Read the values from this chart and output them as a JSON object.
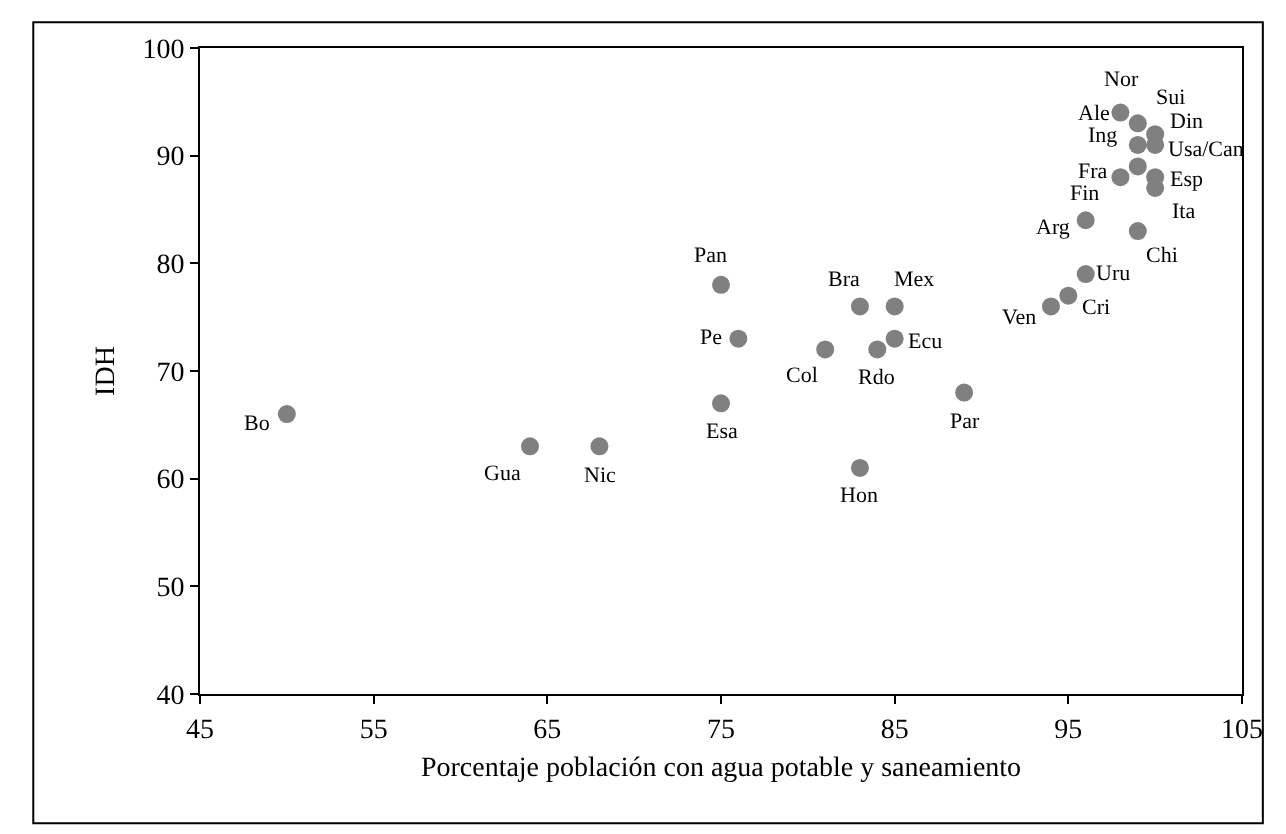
{
  "chart_data": {
    "type": "scatter",
    "xlabel": "Porcentaje población con agua potable y saneamiento",
    "ylabel": "IDH",
    "x": [
      50,
      64,
      68,
      75,
      75,
      76,
      81,
      83,
      85,
      84,
      85,
      83,
      89,
      94,
      95,
      96,
      99,
      96,
      98,
      99,
      100,
      100,
      99,
      100,
      100,
      99,
      98
    ],
    "values": [
      66,
      63,
      63,
      67,
      78,
      73,
      72,
      76,
      76,
      72,
      73,
      61,
      68,
      76,
      77,
      79,
      83,
      84,
      88,
      89,
      88,
      87,
      91,
      91,
      92,
      93,
      94
    ],
    "color": "#808080",
    "marker": "circle",
    "legend": false,
    "xlim": [
      45,
      105
    ],
    "xticks": [
      45,
      55,
      65,
      75,
      85,
      95,
      105
    ],
    "ylim": [
      40,
      100
    ],
    "yticks": [
      40,
      50,
      60,
      70,
      80,
      90,
      100
    ],
    "annotations": [
      {
        "text": "Bo",
        "x": 50,
        "y": 66
      },
      {
        "text": "Gua",
        "x": 64,
        "y": 63
      },
      {
        "text": "Nic",
        "x": 68,
        "y": 63
      },
      {
        "text": "Esa",
        "x": 75,
        "y": 67
      },
      {
        "text": "Pan",
        "x": 75,
        "y": 78
      },
      {
        "text": "Pe",
        "x": 76,
        "y": 73
      },
      {
        "text": "Col",
        "x": 81,
        "y": 72
      },
      {
        "text": "Bra",
        "x": 83,
        "y": 76
      },
      {
        "text": "Mex",
        "x": 85,
        "y": 76
      },
      {
        "text": "Rdo",
        "x": 84,
        "y": 72
      },
      {
        "text": "Ecu",
        "x": 85,
        "y": 73
      },
      {
        "text": "Hon",
        "x": 83,
        "y": 61
      },
      {
        "text": "Par",
        "x": 89,
        "y": 68
      },
      {
        "text": "Ven",
        "x": 94,
        "y": 76
      },
      {
        "text": "Cri",
        "x": 95,
        "y": 77
      },
      {
        "text": "Uru",
        "x": 96,
        "y": 79
      },
      {
        "text": "Chi",
        "x": 99,
        "y": 83
      },
      {
        "text": "Arg",
        "x": 96,
        "y": 84
      },
      {
        "text": "Fin",
        "x": 96,
        "y": 84
      },
      {
        "text": "Fra",
        "x": 98,
        "y": 88
      },
      {
        "text": "Esp",
        "x": 100,
        "y": 88
      },
      {
        "text": "Ita",
        "x": 100,
        "y": 87
      },
      {
        "text": "Ing",
        "x": 99,
        "y": 91
      },
      {
        "text": "Usa/Can",
        "x": 100,
        "y": 91
      },
      {
        "text": "Din",
        "x": 100,
        "y": 92
      },
      {
        "text": "Sui",
        "x": 100,
        "y": 93
      },
      {
        "text": "Ale",
        "x": 99,
        "y": 93
      },
      {
        "text": "Nor",
        "x": 98,
        "y": 94
      }
    ]
  }
}
